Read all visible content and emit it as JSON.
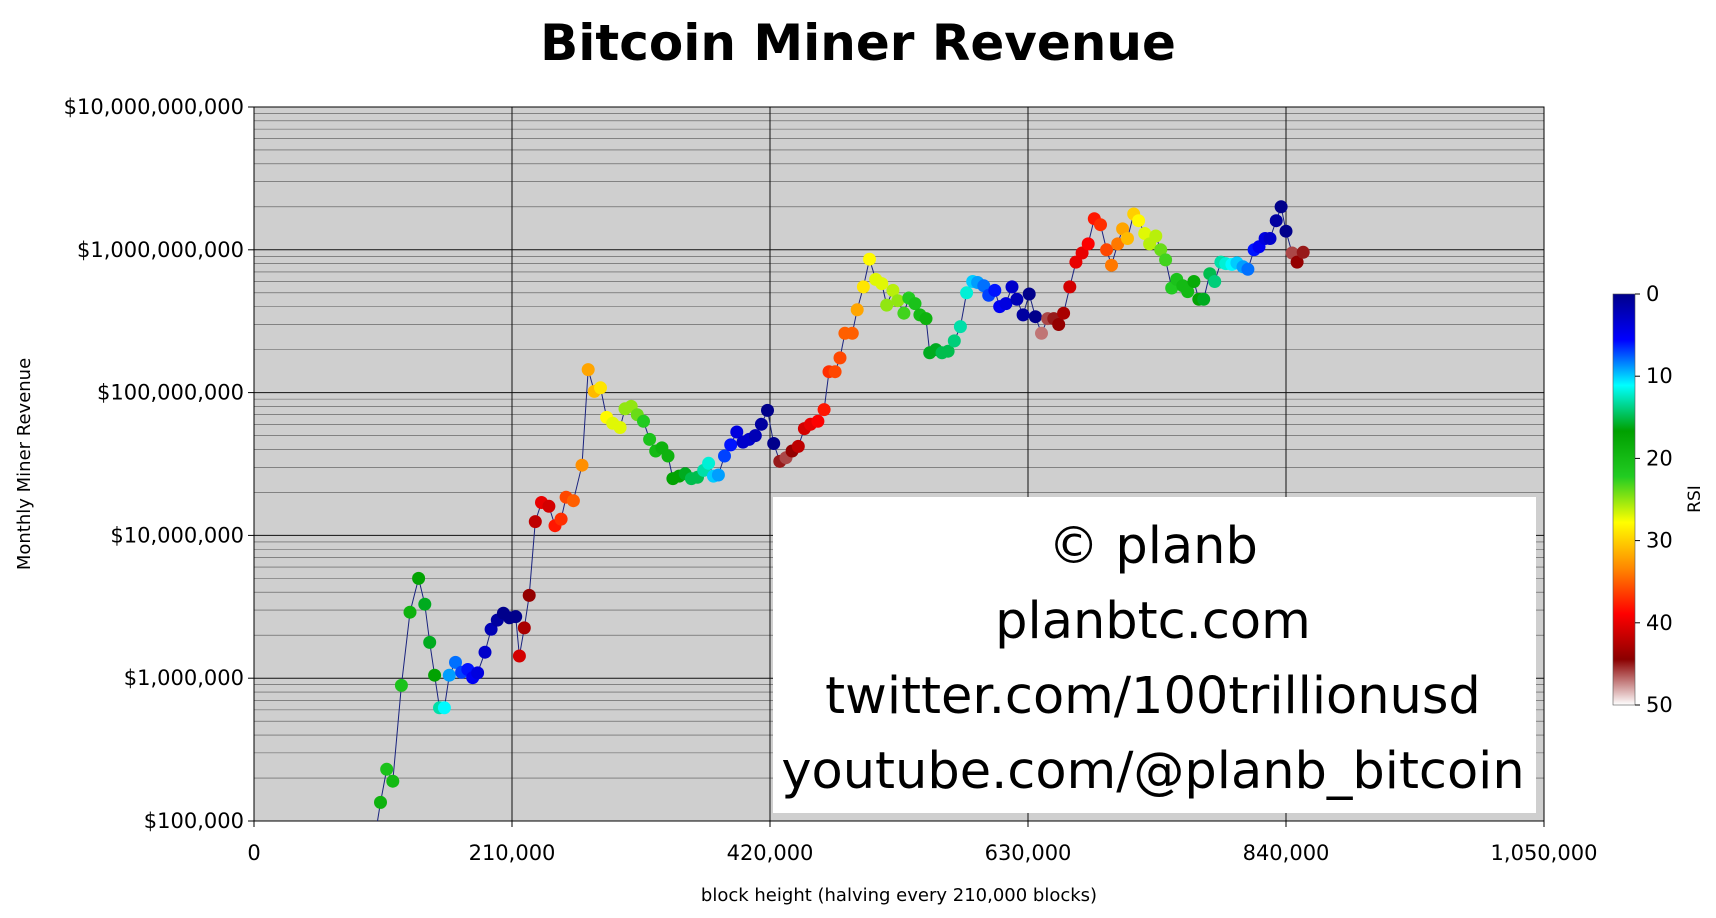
{
  "chart_data": {
    "type": "scatter",
    "title": "Bitcoin Miner Revenue",
    "xlabel": "block height (halving every 210,000 blocks)",
    "ylabel": "Monthly Miner Revenue",
    "x_scale": "linear",
    "y_scale": "log",
    "xlim": [
      0,
      1050000
    ],
    "ylim": [
      100000,
      10000000000
    ],
    "x_ticks": [
      0,
      210000,
      420000,
      630000,
      840000,
      1050000
    ],
    "x_tick_labels": [
      "0",
      "210,000",
      "420,000",
      "630,000",
      "840,000",
      "1,050,000"
    ],
    "y_ticks": [
      100000,
      1000000,
      10000000,
      100000000,
      1000000000,
      10000000000
    ],
    "y_tick_labels": [
      "$100,000",
      "$1,000,000",
      "$10,000,000",
      "$100,000,000",
      "$1,000,000,000",
      "$10,000,000,000"
    ],
    "grid": true,
    "vertical_gridlines": [
      210000,
      420000,
      630000,
      840000
    ],
    "background_color": "#cfcfcf",
    "line_color": "#1a237e",
    "colorbar": {
      "label": "RSI",
      "min": 0,
      "max": 50,
      "ticks": [
        0,
        10,
        20,
        30,
        40,
        50
      ],
      "colors": [
        "#00008b",
        "#0000ff",
        "#00ffff",
        "#00a000",
        "#22cc22",
        "#ffff00",
        "#ff8800",
        "#ff0000",
        "#8b0000",
        "#ffffff"
      ]
    },
    "annotation": {
      "lines": [
        "© planb",
        "planbtc.com",
        "twitter.com/100trillionusd",
        "youtube.com/@planb_bitcoin"
      ]
    },
    "series": [
      {
        "points": [
          {
            "x": 103000,
            "y": 135000,
            "rsi": 19
          },
          {
            "x": 108000,
            "y": 230000,
            "rsi": 21
          },
          {
            "x": 113000,
            "y": 190000,
            "rsi": 20
          },
          {
            "x": 120000,
            "y": 890000,
            "rsi": 21
          },
          {
            "x": 127000,
            "y": 2900000,
            "rsi": 19
          },
          {
            "x": 134000,
            "y": 5000000,
            "rsi": 17
          },
          {
            "x": 139000,
            "y": 3300000,
            "rsi": 16
          },
          {
            "x": 143000,
            "y": 1780000,
            "rsi": 16
          },
          {
            "x": 147000,
            "y": 1050000,
            "rsi": 17
          },
          {
            "x": 151000,
            "y": 620000,
            "rsi": 13
          },
          {
            "x": 155000,
            "y": 620000,
            "rsi": 11
          },
          {
            "x": 159000,
            "y": 1050000,
            "rsi": 9
          },
          {
            "x": 164000,
            "y": 1290000,
            "rsi": 8
          },
          {
            "x": 169000,
            "y": 1100000,
            "rsi": 7
          },
          {
            "x": 174000,
            "y": 1150000,
            "rsi": 6
          },
          {
            "x": 178000,
            "y": 1010000,
            "rsi": 5
          },
          {
            "x": 182000,
            "y": 1090000,
            "rsi": 4
          },
          {
            "x": 188000,
            "y": 1520000,
            "rsi": 3
          },
          {
            "x": 193000,
            "y": 2200000,
            "rsi": 2
          },
          {
            "x": 198000,
            "y": 2550000,
            "rsi": 1
          },
          {
            "x": 203000,
            "y": 2850000,
            "rsi": 0
          },
          {
            "x": 208000,
            "y": 2650000,
            "rsi": 0
          },
          {
            "x": 213000,
            "y": 2700000,
            "rsi": 0
          },
          {
            "x": 216000,
            "y": 1430000,
            "rsi": 41
          },
          {
            "x": 220000,
            "y": 2250000,
            "rsi": 43
          },
          {
            "x": 224000,
            "y": 3800000,
            "rsi": 44
          },
          {
            "x": 229000,
            "y": 12500000,
            "rsi": 42
          },
          {
            "x": 234000,
            "y": 17000000,
            "rsi": 40
          },
          {
            "x": 240000,
            "y": 16000000,
            "rsi": 41
          },
          {
            "x": 245000,
            "y": 11700000,
            "rsi": 38
          },
          {
            "x": 250000,
            "y": 13000000,
            "rsi": 37
          },
          {
            "x": 254000,
            "y": 18500000,
            "rsi": 36
          },
          {
            "x": 260000,
            "y": 17500000,
            "rsi": 35
          },
          {
            "x": 267000,
            "y": 31000000,
            "rsi": 33
          },
          {
            "x": 272000,
            "y": 145000000,
            "rsi": 32
          },
          {
            "x": 277000,
            "y": 102000000,
            "rsi": 31
          },
          {
            "x": 282000,
            "y": 108000000,
            "rsi": 29
          },
          {
            "x": 287000,
            "y": 67000000,
            "rsi": 28
          },
          {
            "x": 292000,
            "y": 61000000,
            "rsi": 27
          },
          {
            "x": 298000,
            "y": 57000000,
            "rsi": 27
          },
          {
            "x": 302000,
            "y": 77000000,
            "rsi": 25
          },
          {
            "x": 307000,
            "y": 80000000,
            "rsi": 25
          },
          {
            "x": 312000,
            "y": 70000000,
            "rsi": 24
          },
          {
            "x": 317000,
            "y": 63000000,
            "rsi": 22
          },
          {
            "x": 322000,
            "y": 47000000,
            "rsi": 21
          },
          {
            "x": 327000,
            "y": 39000000,
            "rsi": 20
          },
          {
            "x": 332000,
            "y": 41000000,
            "rsi": 19
          },
          {
            "x": 337000,
            "y": 36000000,
            "rsi": 19
          },
          {
            "x": 341000,
            "y": 25000000,
            "rsi": 17
          },
          {
            "x": 346000,
            "y": 26000000,
            "rsi": 17
          },
          {
            "x": 351000,
            "y": 27000000,
            "rsi": 16
          },
          {
            "x": 356000,
            "y": 25000000,
            "rsi": 15
          },
          {
            "x": 361000,
            "y": 25500000,
            "rsi": 15
          },
          {
            "x": 366000,
            "y": 28500000,
            "rsi": 13
          },
          {
            "x": 370000,
            "y": 32000000,
            "rsi": 12
          },
          {
            "x": 374000,
            "y": 26000000,
            "rsi": 10
          },
          {
            "x": 378000,
            "y": 26500000,
            "rsi": 9
          },
          {
            "x": 383000,
            "y": 36000000,
            "rsi": 7
          },
          {
            "x": 388000,
            "y": 43000000,
            "rsi": 6
          },
          {
            "x": 393000,
            "y": 53000000,
            "rsi": 4
          },
          {
            "x": 398000,
            "y": 45000000,
            "rsi": 3
          },
          {
            "x": 403000,
            "y": 47000000,
            "rsi": 3
          },
          {
            "x": 408000,
            "y": 50000000,
            "rsi": 2
          },
          {
            "x": 413000,
            "y": 60000000,
            "rsi": 1
          },
          {
            "x": 418000,
            "y": 75000000,
            "rsi": 0
          },
          {
            "x": 423000,
            "y": 44000000,
            "rsi": 0
          },
          {
            "x": 428000,
            "y": 33000000,
            "rsi": 45
          },
          {
            "x": 433000,
            "y": 35000000,
            "rsi": 46
          },
          {
            "x": 438000,
            "y": 39000000,
            "rsi": 44
          },
          {
            "x": 443000,
            "y": 42000000,
            "rsi": 42
          },
          {
            "x": 448000,
            "y": 56000000,
            "rsi": 41
          },
          {
            "x": 453000,
            "y": 60000000,
            "rsi": 40
          },
          {
            "x": 459000,
            "y": 63000000,
            "rsi": 39
          },
          {
            "x": 464000,
            "y": 76000000,
            "rsi": 38
          },
          {
            "x": 468000,
            "y": 140000000,
            "rsi": 37
          },
          {
            "x": 473000,
            "y": 140000000,
            "rsi": 36
          },
          {
            "x": 477000,
            "y": 175000000,
            "rsi": 36
          },
          {
            "x": 481000,
            "y": 260000000,
            "rsi": 35
          },
          {
            "x": 487000,
            "y": 260000000,
            "rsi": 35
          },
          {
            "x": 491000,
            "y": 380000000,
            "rsi": 32
          },
          {
            "x": 496000,
            "y": 550000000,
            "rsi": 29
          },
          {
            "x": 501000,
            "y": 860000000,
            "rsi": 28
          },
          {
            "x": 506000,
            "y": 620000000,
            "rsi": 27
          },
          {
            "x": 511000,
            "y": 580000000,
            "rsi": 27
          },
          {
            "x": 515000,
            "y": 410000000,
            "rsi": 25
          },
          {
            "x": 520000,
            "y": 520000000,
            "rsi": 26
          },
          {
            "x": 524000,
            "y": 440000000,
            "rsi": 25
          },
          {
            "x": 529000,
            "y": 360000000,
            "rsi": 23
          },
          {
            "x": 533000,
            "y": 460000000,
            "rsi": 22
          },
          {
            "x": 538000,
            "y": 420000000,
            "rsi": 21
          },
          {
            "x": 542000,
            "y": 350000000,
            "rsi": 20
          },
          {
            "x": 547000,
            "y": 330000000,
            "rsi": 19
          },
          {
            "x": 550000,
            "y": 190000000,
            "rsi": 16
          },
          {
            "x": 555000,
            "y": 200000000,
            "rsi": 16
          },
          {
            "x": 560000,
            "y": 190000000,
            "rsi": 15
          },
          {
            "x": 565000,
            "y": 195000000,
            "rsi": 15
          },
          {
            "x": 570000,
            "y": 230000000,
            "rsi": 14
          },
          {
            "x": 575000,
            "y": 290000000,
            "rsi": 13
          },
          {
            "x": 580000,
            "y": 500000000,
            "rsi": 12
          },
          {
            "x": 585000,
            "y": 600000000,
            "rsi": 10
          },
          {
            "x": 589000,
            "y": 590000000,
            "rsi": 9
          },
          {
            "x": 594000,
            "y": 560000000,
            "rsi": 8
          },
          {
            "x": 598000,
            "y": 480000000,
            "rsi": 7
          },
          {
            "x": 603000,
            "y": 520000000,
            "rsi": 6
          },
          {
            "x": 607000,
            "y": 400000000,
            "rsi": 5
          },
          {
            "x": 612000,
            "y": 420000000,
            "rsi": 4
          },
          {
            "x": 617000,
            "y": 550000000,
            "rsi": 3
          },
          {
            "x": 621000,
            "y": 450000000,
            "rsi": 2
          },
          {
            "x": 626000,
            "y": 350000000,
            "rsi": 1
          },
          {
            "x": 631000,
            "y": 490000000,
            "rsi": 0
          },
          {
            "x": 636000,
            "y": 340000000,
            "rsi": 0
          },
          {
            "x": 641000,
            "y": 260000000,
            "rsi": 47
          },
          {
            "x": 646000,
            "y": 330000000,
            "rsi": 46
          },
          {
            "x": 651000,
            "y": 330000000,
            "rsi": 45
          },
          {
            "x": 655000,
            "y": 300000000,
            "rsi": 44
          },
          {
            "x": 659000,
            "y": 360000000,
            "rsi": 43
          },
          {
            "x": 664000,
            "y": 550000000,
            "rsi": 41
          },
          {
            "x": 669000,
            "y": 820000000,
            "rsi": 40
          },
          {
            "x": 674000,
            "y": 950000000,
            "rsi": 40
          },
          {
            "x": 679000,
            "y": 1100000000,
            "rsi": 39
          },
          {
            "x": 684000,
            "y": 1650000000,
            "rsi": 38
          },
          {
            "x": 689000,
            "y": 1500000000,
            "rsi": 37
          },
          {
            "x": 694000,
            "y": 1000000000,
            "rsi": 36
          },
          {
            "x": 698000,
            "y": 780000000,
            "rsi": 34
          },
          {
            "x": 703000,
            "y": 1100000000,
            "rsi": 34
          },
          {
            "x": 707000,
            "y": 1400000000,
            "rsi": 32
          },
          {
            "x": 711000,
            "y": 1200000000,
            "rsi": 31
          },
          {
            "x": 716000,
            "y": 1780000000,
            "rsi": 30
          },
          {
            "x": 720000,
            "y": 1600000000,
            "rsi": 28
          },
          {
            "x": 725000,
            "y": 1300000000,
            "rsi": 27
          },
          {
            "x": 729000,
            "y": 1100000000,
            "rsi": 26
          },
          {
            "x": 734000,
            "y": 1250000000,
            "rsi": 26
          },
          {
            "x": 738000,
            "y": 1000000000,
            "rsi": 24
          },
          {
            "x": 742000,
            "y": 850000000,
            "rsi": 23
          },
          {
            "x": 747000,
            "y": 540000000,
            "rsi": 22
          },
          {
            "x": 751000,
            "y": 620000000,
            "rsi": 21
          },
          {
            "x": 756000,
            "y": 560000000,
            "rsi": 20
          },
          {
            "x": 760000,
            "y": 510000000,
            "rsi": 20
          },
          {
            "x": 765000,
            "y": 600000000,
            "rsi": 18
          },
          {
            "x": 769000,
            "y": 450000000,
            "rsi": 17
          },
          {
            "x": 773000,
            "y": 450000000,
            "rsi": 16
          },
          {
            "x": 778000,
            "y": 680000000,
            "rsi": 15
          },
          {
            "x": 782000,
            "y": 600000000,
            "rsi": 14
          },
          {
            "x": 787000,
            "y": 820000000,
            "rsi": 13
          },
          {
            "x": 791000,
            "y": 800000000,
            "rsi": 12
          },
          {
            "x": 796000,
            "y": 790000000,
            "rsi": 11
          },
          {
            "x": 800000,
            "y": 810000000,
            "rsi": 10
          },
          {
            "x": 805000,
            "y": 760000000,
            "rsi": 9
          },
          {
            "x": 809000,
            "y": 730000000,
            "rsi": 8
          },
          {
            "x": 814000,
            "y": 1000000000,
            "rsi": 6
          },
          {
            "x": 818000,
            "y": 1050000000,
            "rsi": 5
          },
          {
            "x": 823000,
            "y": 1200000000,
            "rsi": 4
          },
          {
            "x": 827000,
            "y": 1200000000,
            "rsi": 3
          },
          {
            "x": 832000,
            "y": 1600000000,
            "rsi": 1
          },
          {
            "x": 836000,
            "y": 2000000000,
            "rsi": 0
          },
          {
            "x": 840000,
            "y": 1350000000,
            "rsi": 0
          },
          {
            "x": 845000,
            "y": 950000000,
            "rsi": 46
          },
          {
            "x": 849000,
            "y": 820000000,
            "rsi": 44
          },
          {
            "x": 854000,
            "y": 960000000,
            "rsi": 45
          }
        ]
      }
    ]
  }
}
